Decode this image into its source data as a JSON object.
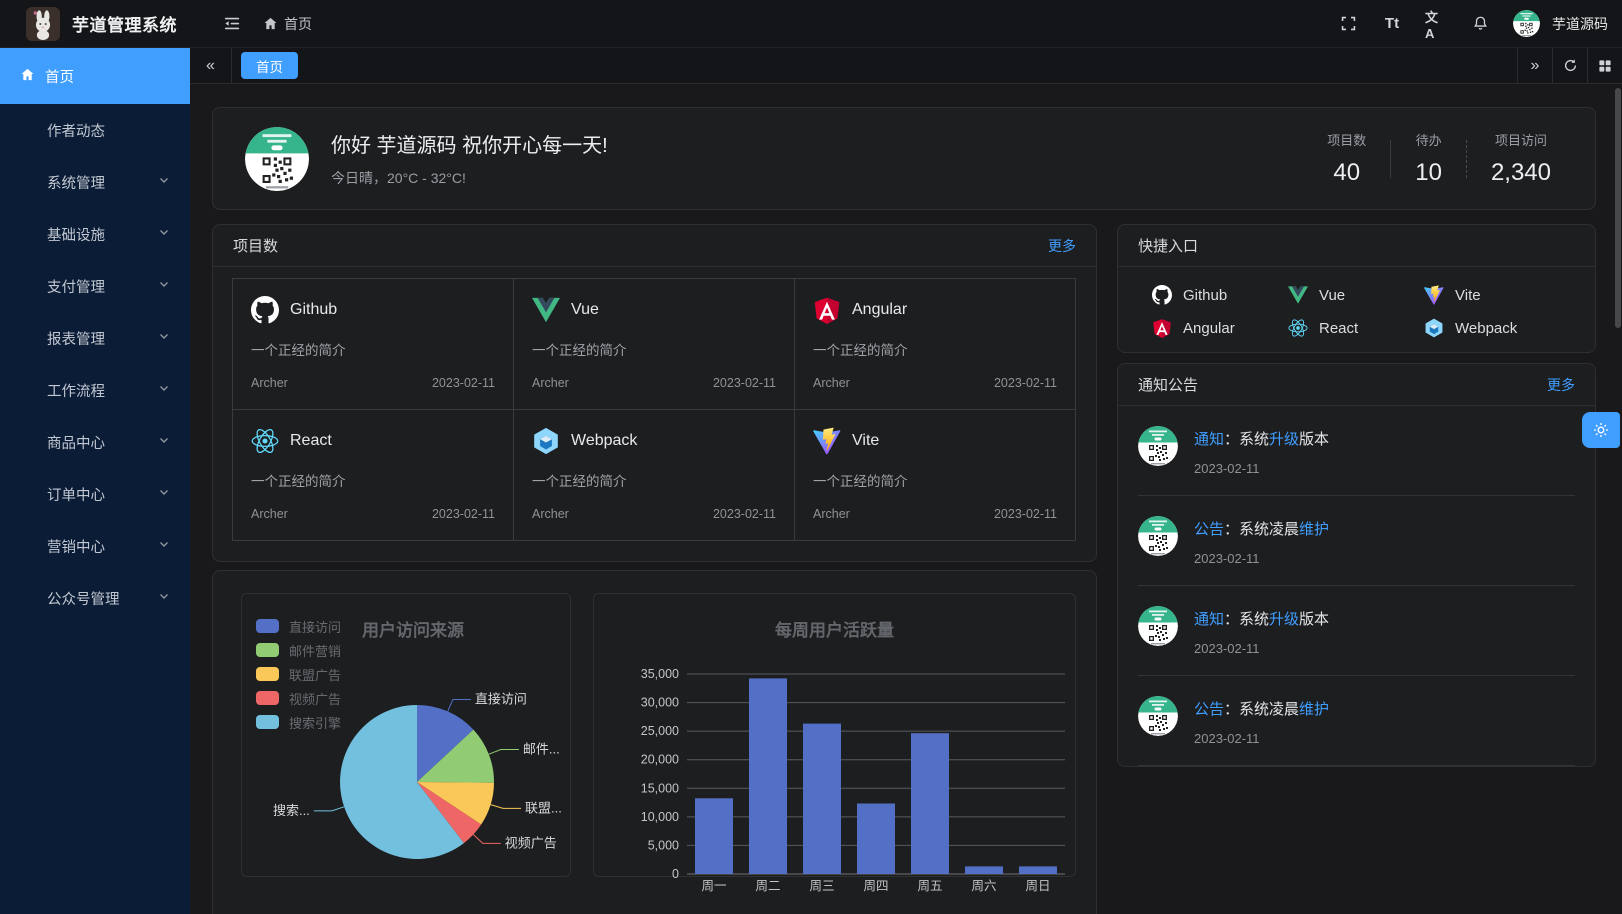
{
  "app": {
    "title": "芋道管理系统",
    "accent_color": "#409eff"
  },
  "header": {
    "breadcrumb_home": "首页",
    "user_name": "芋道源码",
    "icons": [
      "collapse-icon",
      "fullscreen-icon",
      "font-size-icon",
      "language-icon",
      "bell-icon"
    ],
    "font_size_icon_text": "Tt",
    "language_icon_text": "文A"
  },
  "tabs": {
    "active_label": "首页"
  },
  "sidebar": {
    "items": [
      {
        "label": "首页",
        "active": true,
        "has_children": false
      },
      {
        "label": "作者动态",
        "active": false,
        "has_children": false
      },
      {
        "label": "系统管理",
        "active": false,
        "has_children": true
      },
      {
        "label": "基础设施",
        "active": false,
        "has_children": true
      },
      {
        "label": "支付管理",
        "active": false,
        "has_children": true
      },
      {
        "label": "报表管理",
        "active": false,
        "has_children": true
      },
      {
        "label": "工作流程",
        "active": false,
        "has_children": true
      },
      {
        "label": "商品中心",
        "active": false,
        "has_children": true
      },
      {
        "label": "订单中心",
        "active": false,
        "has_children": true
      },
      {
        "label": "营销中心",
        "active": false,
        "has_children": true
      },
      {
        "label": "公众号管理",
        "active": false,
        "has_children": true
      }
    ]
  },
  "welcome": {
    "greeting": "你好 芋道源码 祝你开心每一天!",
    "weather": "今日晴，20°C - 32°C!",
    "stats": [
      {
        "label": "项目数",
        "value": "40"
      },
      {
        "label": "待办",
        "value": "10"
      },
      {
        "label": "项目访问",
        "value": "2,340"
      }
    ]
  },
  "projects": {
    "title": "项目数",
    "more_label": "更多",
    "items": [
      {
        "name": "Github",
        "icon": "github",
        "desc": "一个正经的简介",
        "author": "Archer",
        "date": "2023-02-11"
      },
      {
        "name": "Vue",
        "icon": "vue",
        "desc": "一个正经的简介",
        "author": "Archer",
        "date": "2023-02-11"
      },
      {
        "name": "Angular",
        "icon": "angular",
        "desc": "一个正经的简介",
        "author": "Archer",
        "date": "2023-02-11"
      },
      {
        "name": "React",
        "icon": "react",
        "desc": "一个正经的简介",
        "author": "Archer",
        "date": "2023-02-11"
      },
      {
        "name": "Webpack",
        "icon": "webpack",
        "desc": "一个正经的简介",
        "author": "Archer",
        "date": "2023-02-11"
      },
      {
        "name": "Vite",
        "icon": "vite",
        "desc": "一个正经的简介",
        "author": "Archer",
        "date": "2023-02-11"
      }
    ]
  },
  "shortcuts": {
    "title": "快捷入口",
    "items": [
      {
        "label": "Github",
        "icon": "github"
      },
      {
        "label": "Vue",
        "icon": "vue"
      },
      {
        "label": "Vite",
        "icon": "vite"
      },
      {
        "label": "Angular",
        "icon": "angular"
      },
      {
        "label": "React",
        "icon": "react"
      },
      {
        "label": "Webpack",
        "icon": "webpack"
      }
    ]
  },
  "notices": {
    "title": "通知公告",
    "more_label": "更多",
    "items": [
      {
        "segments": [
          {
            "text": "通知",
            "blue": true
          },
          {
            "text": "：系统",
            "blue": false
          },
          {
            "text": "升级",
            "blue": true
          },
          {
            "text": "版本",
            "blue": false
          }
        ],
        "date": "2023-02-11"
      },
      {
        "segments": [
          {
            "text": "公告",
            "blue": true
          },
          {
            "text": "：系统凌晨",
            "blue": false
          },
          {
            "text": "维护",
            "blue": true
          }
        ],
        "date": "2023-02-11"
      },
      {
        "segments": [
          {
            "text": "通知",
            "blue": true
          },
          {
            "text": "：系统",
            "blue": false
          },
          {
            "text": "升级",
            "blue": true
          },
          {
            "text": "版本",
            "blue": false
          }
        ],
        "date": "2023-02-11"
      },
      {
        "segments": [
          {
            "text": "公告",
            "blue": true
          },
          {
            "text": "：系统凌晨",
            "blue": false
          },
          {
            "text": "维护",
            "blue": true
          }
        ],
        "date": "2023-02-11"
      }
    ]
  },
  "chart_data": [
    {
      "type": "pie",
      "title": "用户访问来源",
      "legend_position": "left",
      "series": [
        {
          "name": "直接访问",
          "value": 335,
          "color": "#5470c6",
          "label_display": "直接访问"
        },
        {
          "name": "邮件营销",
          "value": 310,
          "color": "#91cc75",
          "label_display": "邮件..."
        },
        {
          "name": "联盟广告",
          "value": 234,
          "color": "#fac858",
          "label_display": "联盟..."
        },
        {
          "name": "视频广告",
          "value": 135,
          "color": "#ee6666",
          "label_display": "视频广告"
        },
        {
          "name": "搜索引擎",
          "value": 1548,
          "color": "#73c0de",
          "label_display": "搜索..."
        }
      ]
    },
    {
      "type": "bar",
      "title": "每周用户活跃量",
      "categories": [
        "周一",
        "周二",
        "周三",
        "周四",
        "周五",
        "周六",
        "周日"
      ],
      "values": [
        13253,
        34235,
        26321,
        12340,
        24643,
        1322,
        1324
      ],
      "bar_color": "#5470c6",
      "ylim": [
        0,
        35000
      ],
      "ytick_step": 5000,
      "ytick_labels": [
        "0",
        "5,000",
        "10,000",
        "15,000",
        "20,000",
        "25,000",
        "30,000",
        "35,000"
      ],
      "grid": true,
      "legend_position": "none"
    }
  ]
}
